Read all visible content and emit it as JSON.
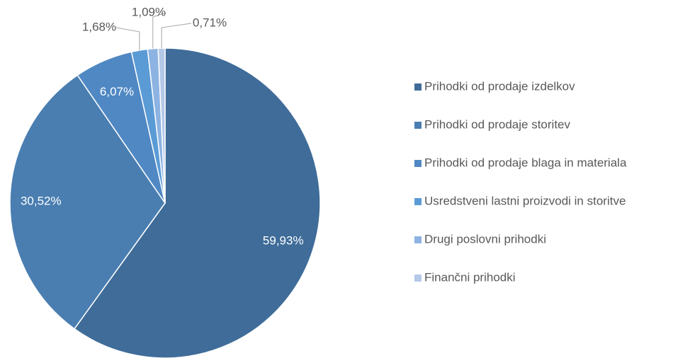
{
  "chart_data": {
    "type": "pie",
    "categories": [
      "Prihodki od prodaje izdelkov",
      "Prihodki od prodaje storitev",
      "Prihodki od prodaje blaga in materiala",
      "Usredstveni lastni proizvodi in storitve",
      "Drugi poslovni prihodki",
      "Finančni prihodki"
    ],
    "values": [
      59.93,
      30.52,
      6.07,
      1.68,
      1.09,
      0.71
    ],
    "value_labels": [
      "59,93%",
      "30,52%",
      "6,07%",
      "1,68%",
      "1,09%",
      "0,71%"
    ],
    "colors": [
      "#3f6c99",
      "#4a7eb1",
      "#4f88c3",
      "#5b9bd5",
      "#8db3e2",
      "#b4c8e8"
    ],
    "legend": "right"
  }
}
